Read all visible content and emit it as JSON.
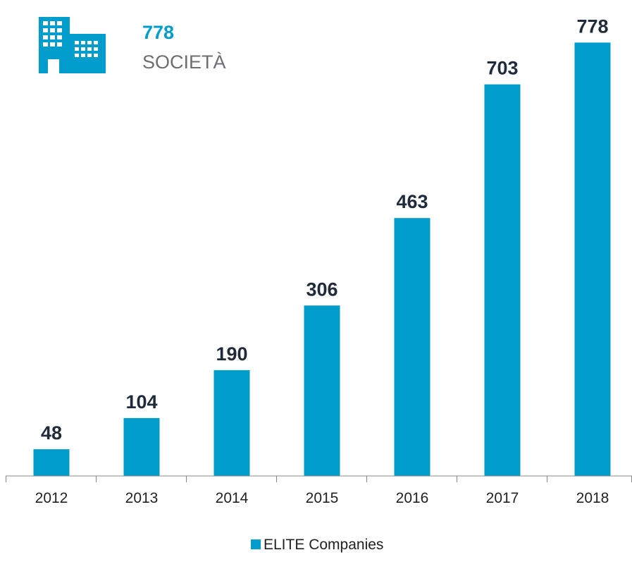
{
  "header": {
    "value": "778",
    "label": "SOCIETÀ"
  },
  "chart_data": {
    "type": "bar",
    "categories": [
      "2012",
      "2013",
      "2014",
      "2015",
      "2016",
      "2017",
      "2018"
    ],
    "series": [
      {
        "name": "ELITE Companies",
        "color": "#009ccc",
        "values": [
          48,
          104,
          190,
          306,
          463,
          703,
          778
        ]
      }
    ],
    "ylim": [
      0,
      800
    ],
    "legend": "bottom"
  }
}
